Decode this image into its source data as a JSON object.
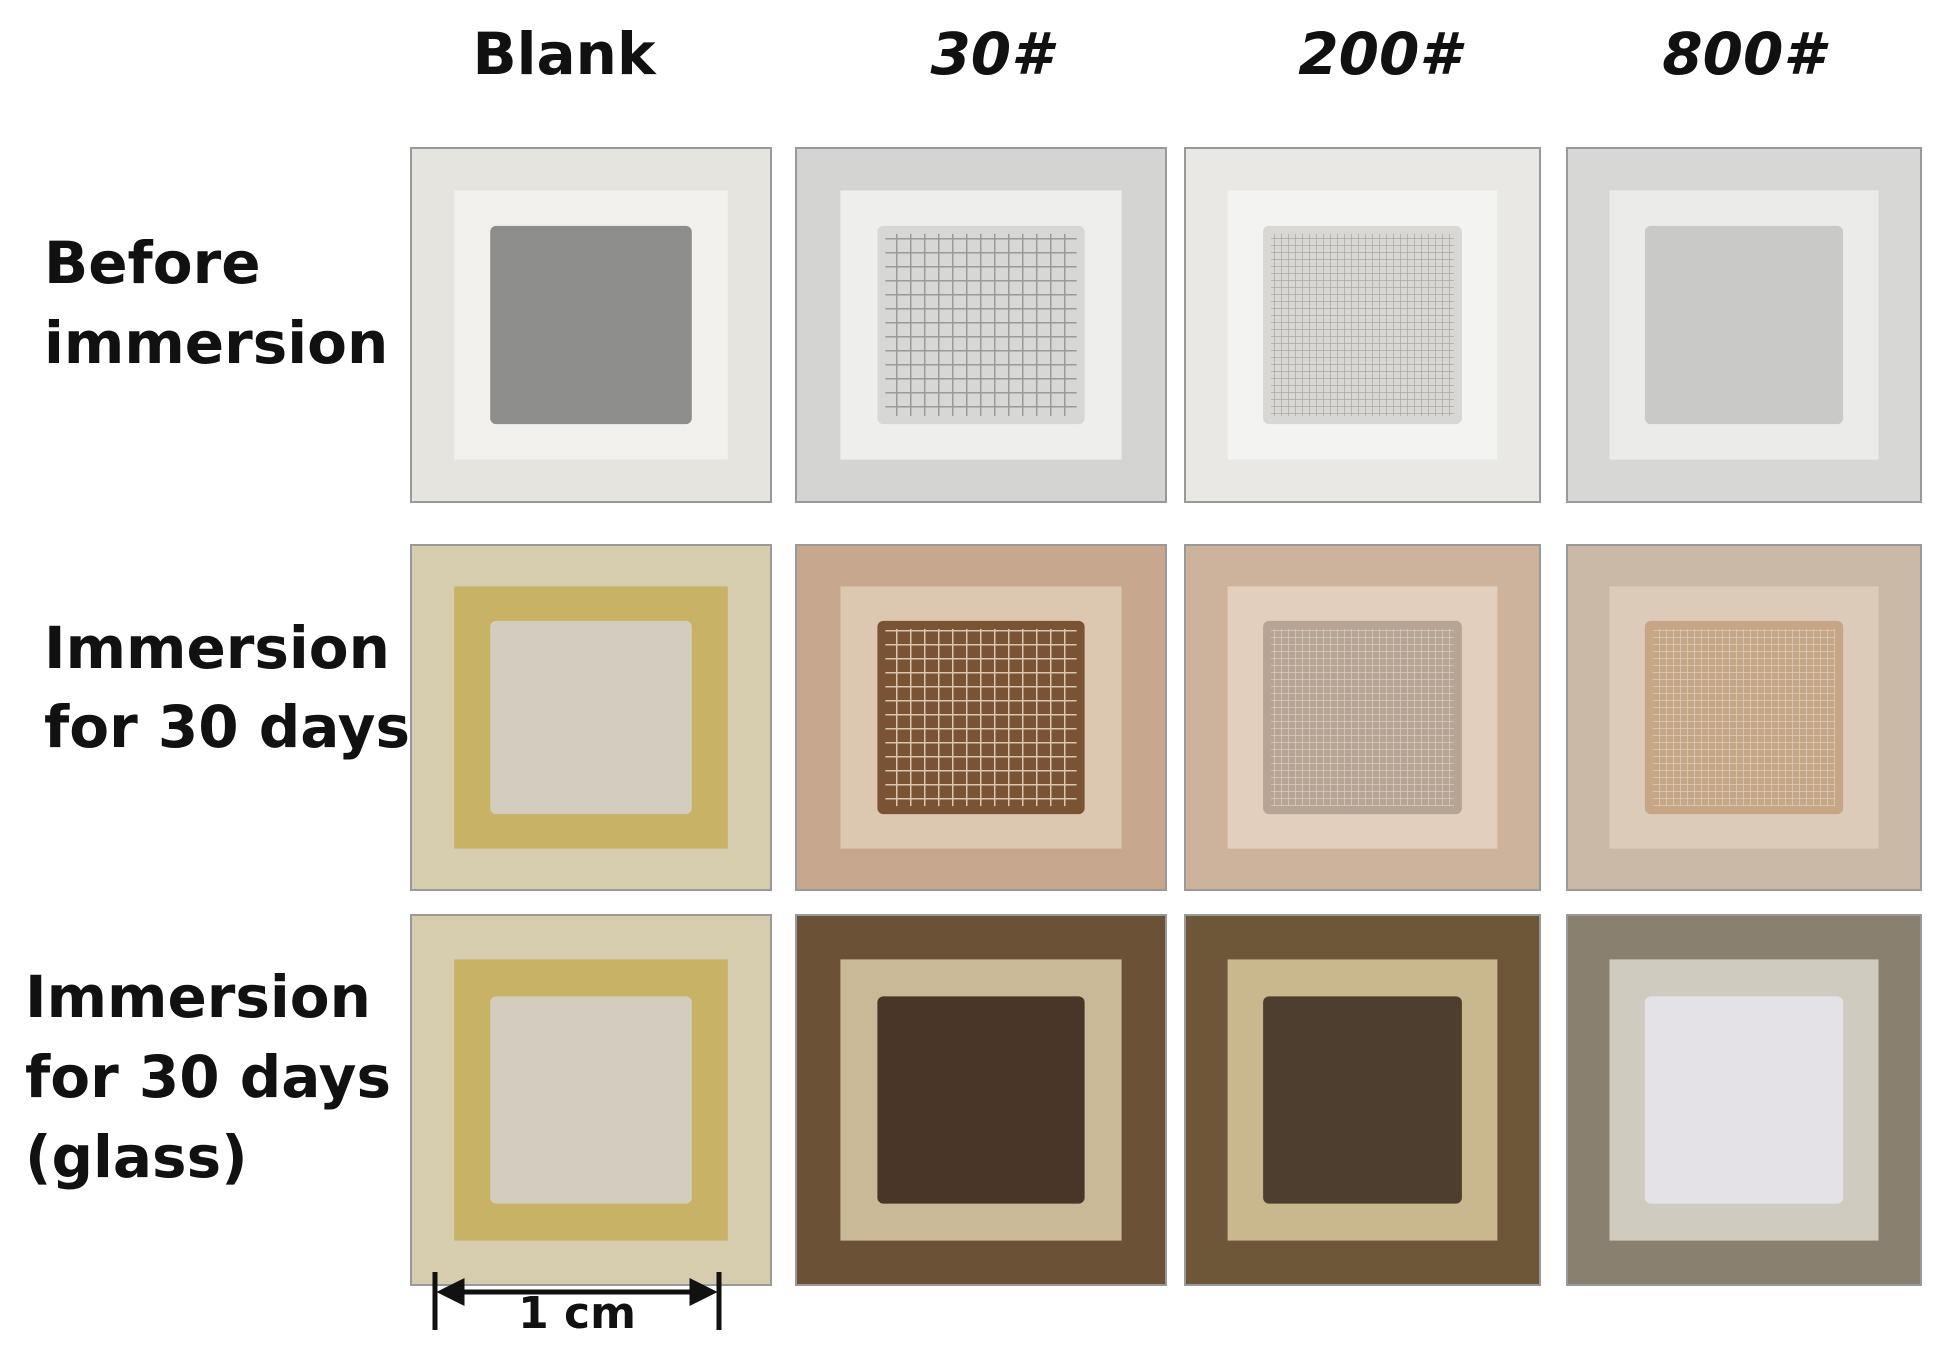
{
  "columns": [
    "Blank",
    "30#",
    "200#",
    "800#"
  ],
  "rows": [
    [
      "Before",
      "immersion"
    ],
    [
      "Immersion",
      "for 30 days"
    ],
    [
      "Immersion",
      "for 30 days",
      "(glass)"
    ]
  ],
  "scale_bar": "1 cm"
}
